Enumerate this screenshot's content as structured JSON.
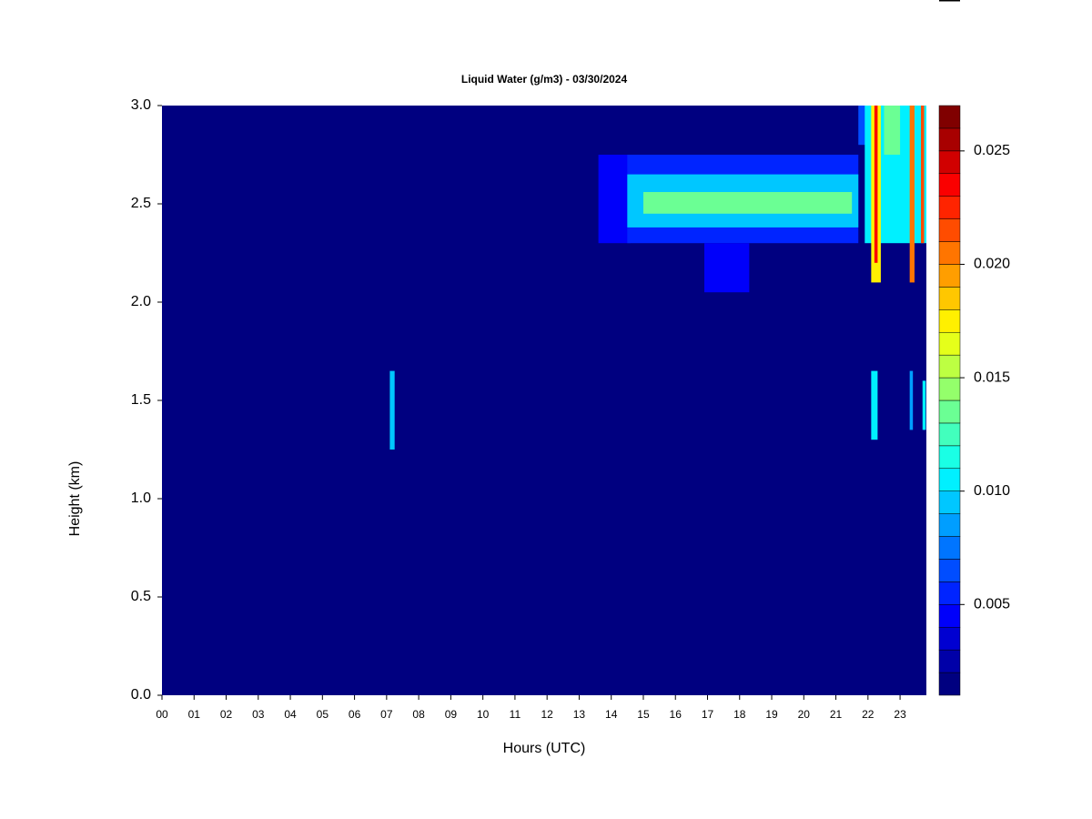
{
  "chart_data": {
    "type": "heatmap",
    "title": "Liquid Water (g/m3) - 03/30/2024",
    "x_label": "Hours (UTC)",
    "y_label": "Height (km)",
    "xlim": [
      0,
      23.82
    ],
    "ylim": [
      0,
      3
    ],
    "xticks": [
      {
        "value": 0,
        "label": "00"
      },
      {
        "value": 1,
        "label": "01"
      },
      {
        "value": 2,
        "label": "02"
      },
      {
        "value": 3,
        "label": "03"
      },
      {
        "value": 4,
        "label": "04"
      },
      {
        "value": 5,
        "label": "05"
      },
      {
        "value": 6,
        "label": "06"
      },
      {
        "value": 7,
        "label": "07"
      },
      {
        "value": 8,
        "label": "08"
      },
      {
        "value": 9,
        "label": "09"
      },
      10,
      11,
      12,
      13,
      14,
      15,
      16,
      17,
      18,
      19,
      20,
      21,
      22,
      23
    ],
    "yticks": [
      {
        "value": 0,
        "label": "0.0"
      },
      {
        "value": 0.5,
        "label": "0.5"
      },
      {
        "value": 1,
        "label": "1.0"
      },
      {
        "value": 1.5,
        "label": "1.5"
      },
      {
        "value": 2,
        "label": "2.0"
      },
      {
        "value": 2.5,
        "label": "2.5"
      },
      {
        "value": 3,
        "label": "3.0"
      }
    ],
    "colorscale": "jet",
    "colorbar": {
      "lim": [
        0.001,
        0.027
      ],
      "step": 0.001,
      "ticks": [
        0.005,
        {
          "value": 0.01,
          "label": "0.010"
        },
        0.015,
        {
          "value": 0.02,
          "label": "0.020"
        },
        0.025
      ]
    },
    "cells": [
      {
        "x": [
          0,
          23.82
        ],
        "y": [
          0,
          3
        ],
        "value": 0.001
      },
      {
        "x": [
          7.1,
          7.25
        ],
        "y": [
          1.25,
          1.65
        ],
        "value": 0.009
      },
      {
        "x": [
          13.6,
          14.6
        ],
        "y": [
          2.3,
          2.75
        ],
        "value": 0.004
      },
      {
        "x": [
          14.5,
          21.7
        ],
        "y": [
          2.3,
          2.75
        ],
        "value": 0.005
      },
      {
        "x": [
          14.5,
          21.7
        ],
        "y": [
          2.38,
          2.65
        ],
        "value": 0.009
      },
      {
        "x": [
          15,
          21.5
        ],
        "y": [
          2.45,
          2.56
        ],
        "value": 0.013
      },
      {
        "x": [
          16.9,
          18.3
        ],
        "y": [
          2.05,
          2.3
        ],
        "value": 0.004
      },
      {
        "x": [
          21.7,
          22
        ],
        "y": [
          2.8,
          3
        ],
        "value": 0.006
      },
      {
        "x": [
          21.9,
          23.82
        ],
        "y": [
          2.3,
          3
        ],
        "value": 0.01
      },
      {
        "x": [
          22.5,
          23
        ],
        "y": [
          2.75,
          3
        ],
        "value": 0.013
      },
      {
        "x": [
          22.1,
          22.4
        ],
        "y": [
          2.1,
          3
        ],
        "value": 0.017
      },
      {
        "x": [
          22.2,
          22.3
        ],
        "y": [
          2.2,
          3
        ],
        "value": 0.023
      },
      {
        "x": [
          23.3,
          23.45
        ],
        "y": [
          2.1,
          3
        ],
        "value": 0.02
      },
      {
        "x": [
          23.65,
          23.75
        ],
        "y": [
          2.3,
          3
        ],
        "value": 0.021
      },
      {
        "x": [
          22.1,
          22.3
        ],
        "y": [
          1.3,
          1.65
        ],
        "value": 0.01
      },
      {
        "x": [
          23.3,
          23.4
        ],
        "y": [
          1.35,
          1.65
        ],
        "value": 0.008
      },
      {
        "x": [
          23.7,
          23.8
        ],
        "y": [
          1.35,
          1.6
        ],
        "value": 0.01
      }
    ]
  }
}
